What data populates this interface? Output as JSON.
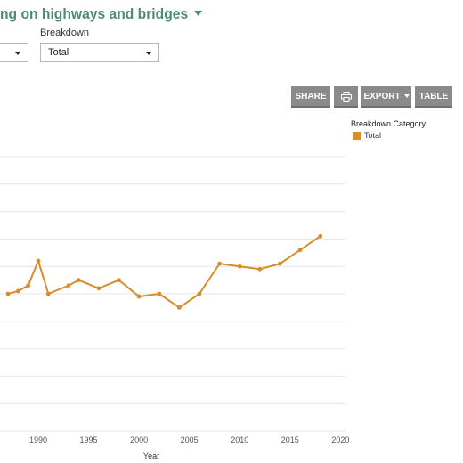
{
  "title": "ng on highways and bridges",
  "filters": {
    "breakdown_label": "Breakdown",
    "breakdown_value": "Total"
  },
  "toolbar": {
    "share_label": "SHARE",
    "export_label": "EXPORT",
    "table_label": "TABLE",
    "print_icon": "printer-icon"
  },
  "legend": {
    "title": "Breakdown Category",
    "items": [
      {
        "label": "Total",
        "color": "#d98c2b"
      }
    ]
  },
  "chart_data": {
    "type": "line",
    "xlabel": "Year",
    "ylabel": "",
    "x_ticks": [
      1990,
      1995,
      2000,
      2005,
      2010,
      2015,
      2020
    ],
    "xlim": [
      1986.2,
      2020.5
    ],
    "ylim": [
      0,
      10
    ],
    "grid": true,
    "legend_position": "top-right",
    "series": [
      {
        "name": "Total",
        "color": "#d98c2b",
        "x": [
          1987,
          1988,
          1989,
          1990,
          1991,
          1993,
          1994,
          1996,
          1998,
          2000,
          2002,
          2004,
          2006,
          2008,
          2010,
          2012,
          2014,
          2016,
          2018
        ],
        "y": [
          5.0,
          5.1,
          5.3,
          6.2,
          5.0,
          5.3,
          5.5,
          5.2,
          5.5,
          4.9,
          5.0,
          4.5,
          5.0,
          6.1,
          6.0,
          5.9,
          6.1,
          6.6,
          7.1
        ]
      }
    ]
  }
}
